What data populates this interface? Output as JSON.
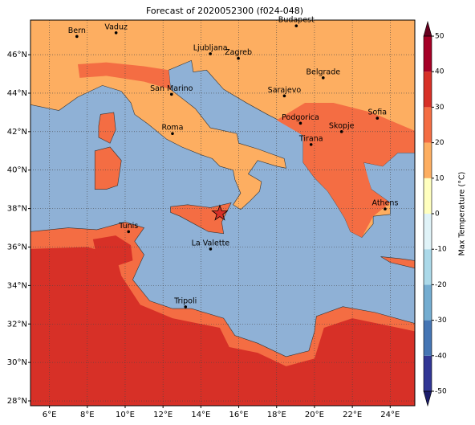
{
  "title": "Forecast of 2020052300 (f024-048)",
  "map": {
    "lonlim": [
      5,
      25.3
    ],
    "latlim": [
      27.75,
      47.8
    ],
    "xticks": [
      {
        "value": 6,
        "label": "6°E"
      },
      {
        "value": 8,
        "label": "8°E"
      },
      {
        "value": 10,
        "label": "10°E"
      },
      {
        "value": 12,
        "label": "12°E"
      },
      {
        "value": 14,
        "label": "14°E"
      },
      {
        "value": 16,
        "label": "16°E"
      },
      {
        "value": 18,
        "label": "18°E"
      },
      {
        "value": 20,
        "label": "20°E"
      },
      {
        "value": 22,
        "label": "22°E"
      },
      {
        "value": 24,
        "label": "24°E"
      }
    ],
    "yticks": [
      {
        "value": 28,
        "label": "28°N"
      },
      {
        "value": 30,
        "label": "30°N"
      },
      {
        "value": 32,
        "label": "32°N"
      },
      {
        "value": 34,
        "label": "34°N"
      },
      {
        "value": 36,
        "label": "36°N"
      },
      {
        "value": 38,
        "label": "38°N"
      },
      {
        "value": 40,
        "label": "40°N"
      },
      {
        "value": 42,
        "label": "42°N"
      },
      {
        "value": 44,
        "label": "44°N"
      },
      {
        "value": 46,
        "label": "46°N"
      }
    ],
    "grid": true,
    "cities": [
      {
        "name": "Bern",
        "lon": 7.45,
        "lat": 46.95
      },
      {
        "name": "Vaduz",
        "lon": 9.52,
        "lat": 47.14
      },
      {
        "name": "Budapest",
        "lon": 19.04,
        "lat": 47.5
      },
      {
        "name": "Ljubljana",
        "lon": 14.5,
        "lat": 46.05
      },
      {
        "name": "Zagreb",
        "lon": 15.98,
        "lat": 45.81
      },
      {
        "name": "San Marino",
        "lon": 12.45,
        "lat": 43.94
      },
      {
        "name": "Belgrade",
        "lon": 20.46,
        "lat": 44.8
      },
      {
        "name": "Sarajevo",
        "lon": 18.41,
        "lat": 43.86
      },
      {
        "name": "Roma",
        "lon": 12.5,
        "lat": 41.9
      },
      {
        "name": "Podgorica",
        "lon": 19.26,
        "lat": 42.44
      },
      {
        "name": "Skopje",
        "lon": 21.43,
        "lat": 42.0
      },
      {
        "name": "Sofia",
        "lon": 23.32,
        "lat": 42.7
      },
      {
        "name": "Tirana",
        "lon": 19.82,
        "lat": 41.33
      },
      {
        "name": "Athens",
        "lon": 23.73,
        "lat": 37.98
      },
      {
        "name": "Tunis",
        "lon": 10.18,
        "lat": 36.8
      },
      {
        "name": "La Valette",
        "lon": 14.51,
        "lat": 35.9
      },
      {
        "name": "Tripoli",
        "lon": 13.19,
        "lat": 32.89
      }
    ],
    "star": {
      "lon": 15.0,
      "lat": 37.75
    }
  },
  "colorbar": {
    "label": "Max Temperature (°C)",
    "lim": [
      -50,
      50
    ],
    "ticks": [
      -50,
      -40,
      -30,
      -20,
      -10,
      0,
      10,
      20,
      30,
      40,
      50
    ],
    "colors": [
      "#313695",
      "#4575b4",
      "#74add1",
      "#abd9e9",
      "#e0f3f8",
      "#ffffbf",
      "#fdae61",
      "#f46d43",
      "#d73027",
      "#a50026"
    ]
  }
}
